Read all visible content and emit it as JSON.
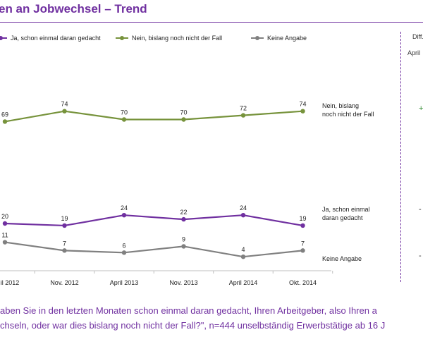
{
  "title": "en an Jobwechsel – Trend",
  "legend": [
    {
      "label": "Ja, schon einmal daran gedacht",
      "color": "#7030a0"
    },
    {
      "label": "Nein, bislang noch nicht der Fall",
      "color": "#77933c"
    },
    {
      "label": "Keine Angabe",
      "color": "#808080"
    }
  ],
  "diff": {
    "header": "Diff.",
    "subheader": "April",
    "values": [
      {
        "text": "+",
        "color": "#2e8b2e"
      },
      {
        "text": "-",
        "color": "#333333"
      },
      {
        "text": "-",
        "color": "#333333"
      }
    ]
  },
  "chart_data": {
    "type": "line",
    "categories": [
      "il 2012",
      "Nov. 2012",
      "April 2013",
      "Nov. 2013",
      "April 2014",
      "Okt. 2014"
    ],
    "series": [
      {
        "name": "Nein, bislang noch nicht der Fall",
        "line_label": [
          "Nein, bislang",
          "noch nicht der Fall"
        ],
        "color": "#77933c",
        "values": [
          69,
          74,
          70,
          70,
          72,
          74
        ]
      },
      {
        "name": "Ja, schon einmal daran gedacht",
        "line_label": [
          "Ja, schon einmal",
          "daran gedacht"
        ],
        "color": "#7030a0",
        "values": [
          20,
          19,
          24,
          22,
          24,
          19
        ]
      },
      {
        "name": "Keine Angabe",
        "line_label": [
          "Keine Angabe"
        ],
        "color": "#808080",
        "values": [
          11,
          7,
          6,
          9,
          4,
          7
        ]
      }
    ],
    "title": "en an Jobwechsel – Trend",
    "xlabel": "",
    "ylabel": "",
    "ylim": [
      0,
      80
    ],
    "grid": false,
    "legend_position": "top"
  },
  "footnote": {
    "line1": "aben Sie in den letzten Monaten schon einmal daran gedacht, Ihren Arbeitgeber, also Ihren a",
    "line2": "chseln, oder war dies bislang noch nicht der Fall?\", n=444 unselbständig Erwerbstätige ab 16 J"
  }
}
